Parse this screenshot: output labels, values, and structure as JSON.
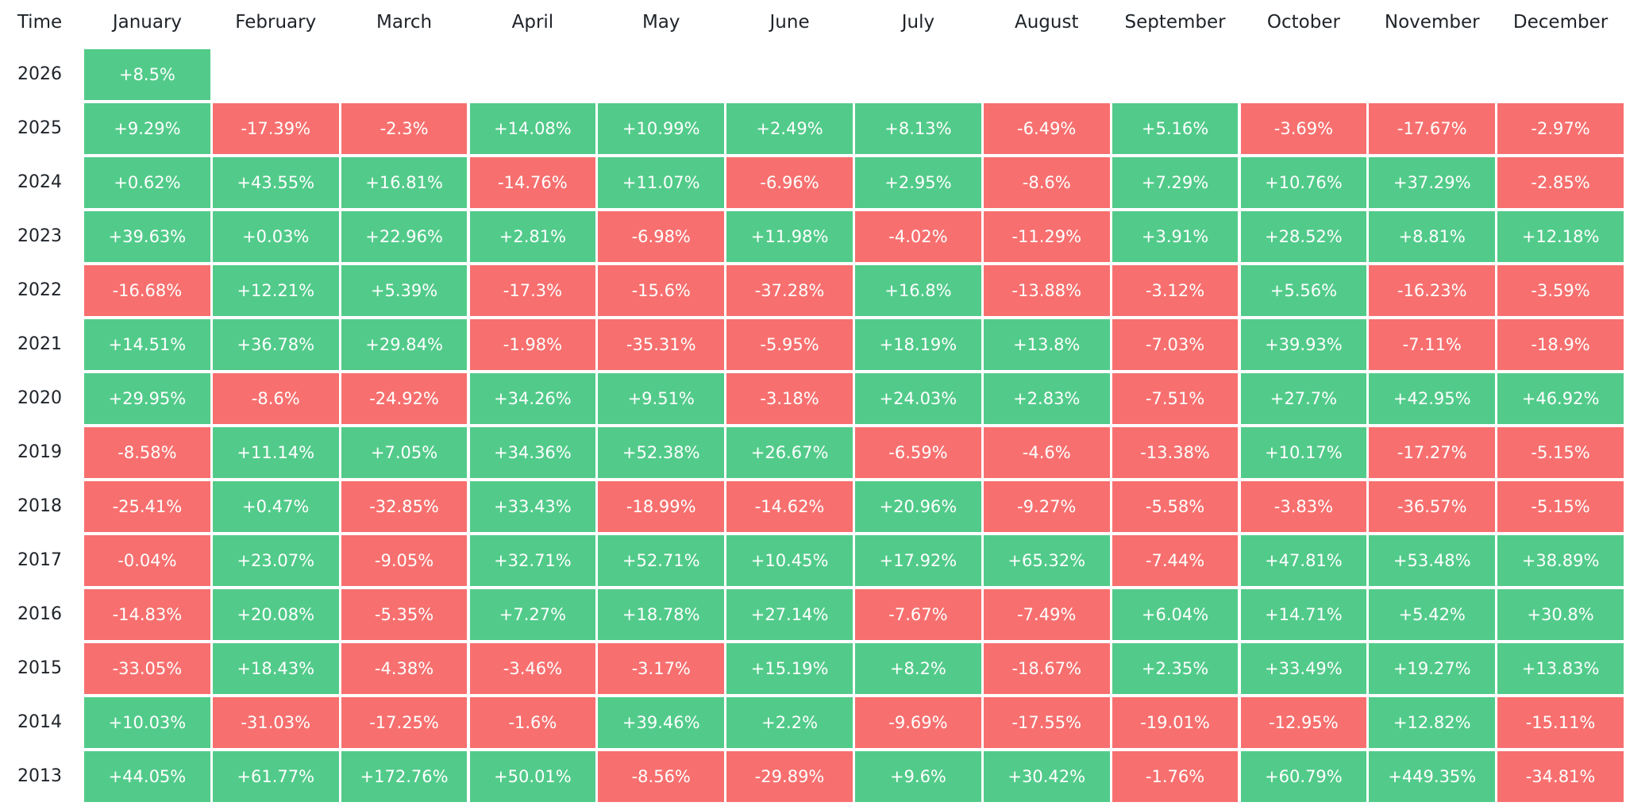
{
  "table": {
    "columns": [
      "Time",
      "January",
      "February",
      "March",
      "April",
      "May",
      "June",
      "July",
      "August",
      "September",
      "October",
      "November",
      "December"
    ],
    "rows": [
      {
        "year": "2026",
        "cells": [
          "+8.5%"
        ]
      },
      {
        "year": "2025",
        "cells": [
          "+9.29%",
          "-17.39%",
          "-2.3%",
          "+14.08%",
          "+10.99%",
          "+2.49%",
          "+8.13%",
          "-6.49%",
          "+5.16%",
          "-3.69%",
          "-17.67%",
          "-2.97%"
        ]
      },
      {
        "year": "2024",
        "cells": [
          "+0.62%",
          "+43.55%",
          "+16.81%",
          "-14.76%",
          "+11.07%",
          "-6.96%",
          "+2.95%",
          "-8.6%",
          "+7.29%",
          "+10.76%",
          "+37.29%",
          "-2.85%"
        ]
      },
      {
        "year": "2023",
        "cells": [
          "+39.63%",
          "+0.03%",
          "+22.96%",
          "+2.81%",
          "-6.98%",
          "+11.98%",
          "-4.02%",
          "-11.29%",
          "+3.91%",
          "+28.52%",
          "+8.81%",
          "+12.18%"
        ]
      },
      {
        "year": "2022",
        "cells": [
          "-16.68%",
          "+12.21%",
          "+5.39%",
          "-17.3%",
          "-15.6%",
          "-37.28%",
          "+16.8%",
          "-13.88%",
          "-3.12%",
          "+5.56%",
          "-16.23%",
          "-3.59%"
        ]
      },
      {
        "year": "2021",
        "cells": [
          "+14.51%",
          "+36.78%",
          "+29.84%",
          "-1.98%",
          "-35.31%",
          "-5.95%",
          "+18.19%",
          "+13.8%",
          "-7.03%",
          "+39.93%",
          "-7.11%",
          "-18.9%"
        ]
      },
      {
        "year": "2020",
        "cells": [
          "+29.95%",
          "-8.6%",
          "-24.92%",
          "+34.26%",
          "+9.51%",
          "-3.18%",
          "+24.03%",
          "+2.83%",
          "-7.51%",
          "+27.7%",
          "+42.95%",
          "+46.92%"
        ]
      },
      {
        "year": "2019",
        "cells": [
          "-8.58%",
          "+11.14%",
          "+7.05%",
          "+34.36%",
          "+52.38%",
          "+26.67%",
          "-6.59%",
          "-4.6%",
          "-13.38%",
          "+10.17%",
          "-17.27%",
          "-5.15%"
        ]
      },
      {
        "year": "2018",
        "cells": [
          "-25.41%",
          "+0.47%",
          "-32.85%",
          "+33.43%",
          "-18.99%",
          "-14.62%",
          "+20.96%",
          "-9.27%",
          "-5.58%",
          "-3.83%",
          "-36.57%",
          "-5.15%"
        ]
      },
      {
        "year": "2017",
        "cells": [
          "-0.04%",
          "+23.07%",
          "-9.05%",
          "+32.71%",
          "+52.71%",
          "+10.45%",
          "+17.92%",
          "+65.32%",
          "-7.44%",
          "+47.81%",
          "+53.48%",
          "+38.89%"
        ]
      },
      {
        "year": "2016",
        "cells": [
          "-14.83%",
          "+20.08%",
          "-5.35%",
          "+7.27%",
          "+18.78%",
          "+27.14%",
          "-7.67%",
          "-7.49%",
          "+6.04%",
          "+14.71%",
          "+5.42%",
          "+30.8%"
        ]
      },
      {
        "year": "2015",
        "cells": [
          "-33.05%",
          "+18.43%",
          "-4.38%",
          "-3.46%",
          "-3.17%",
          "+15.19%",
          "+8.2%",
          "-18.67%",
          "+2.35%",
          "+33.49%",
          "+19.27%",
          "+13.83%"
        ]
      },
      {
        "year": "2014",
        "cells": [
          "+10.03%",
          "-31.03%",
          "-17.25%",
          "-1.6%",
          "+39.46%",
          "+2.2%",
          "-9.69%",
          "-17.55%",
          "-19.01%",
          "-12.95%",
          "+12.82%",
          "-15.11%"
        ]
      },
      {
        "year": "2013",
        "cells": [
          "+44.05%",
          "+61.77%",
          "+172.76%",
          "+50.01%",
          "-8.56%",
          "-29.89%",
          "+9.6%",
          "+30.42%",
          "-1.76%",
          "+60.79%",
          "+449.35%",
          "-34.81%"
        ]
      }
    ]
  }
}
